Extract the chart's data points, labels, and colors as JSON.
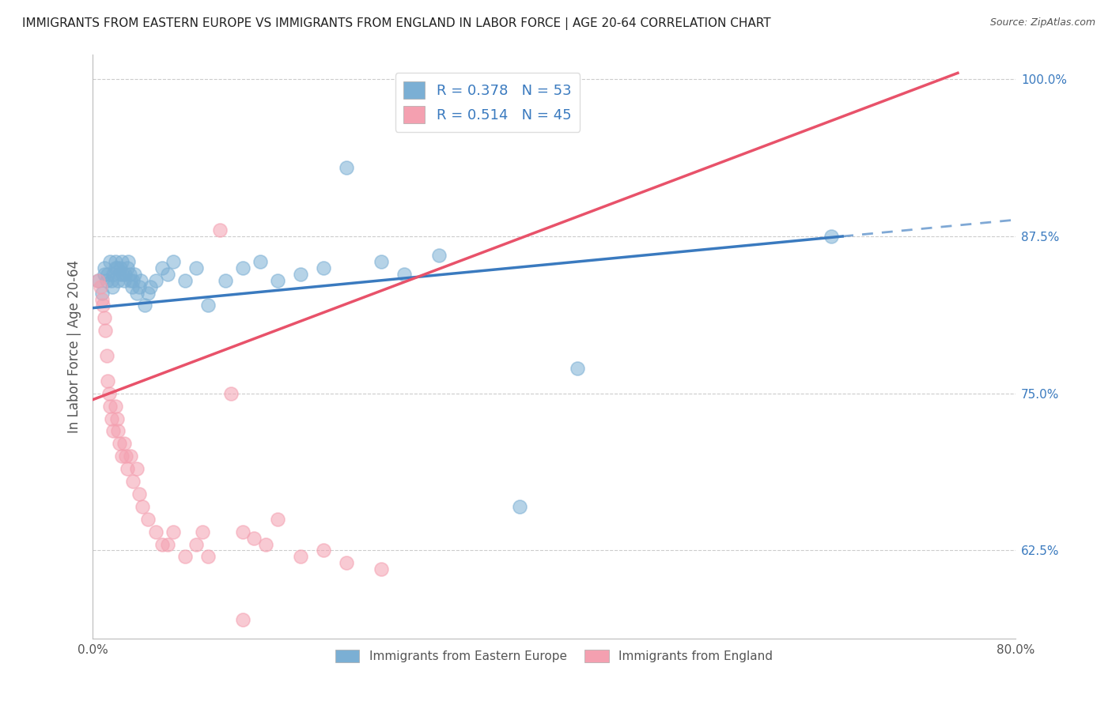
{
  "title": "IMMIGRANTS FROM EASTERN EUROPE VS IMMIGRANTS FROM ENGLAND IN LABOR FORCE | AGE 20-64 CORRELATION CHART",
  "source": "Source: ZipAtlas.com",
  "ylabel": "In Labor Force | Age 20-64",
  "xlim": [
    0.0,
    0.8
  ],
  "ylim": [
    0.555,
    1.02
  ],
  "xticks": [
    0.0,
    0.1,
    0.2,
    0.3,
    0.4,
    0.5,
    0.6,
    0.7,
    0.8
  ],
  "xticklabels": [
    "0.0%",
    "",
    "",
    "",
    "",
    "",
    "",
    "",
    "80.0%"
  ],
  "yticks": [
    0.625,
    0.75,
    0.875,
    1.0
  ],
  "yticklabels": [
    "62.5%",
    "75.0%",
    "87.5%",
    "100.0%"
  ],
  "blue_R": 0.378,
  "blue_N": 53,
  "pink_R": 0.514,
  "pink_N": 45,
  "blue_color": "#7bafd4",
  "pink_color": "#f4a0b0",
  "trend_blue": "#3a7abf",
  "trend_pink": "#e8526a",
  "legend_label_blue": "Immigrants from Eastern Europe",
  "legend_label_pink": "Immigrants from England",
  "blue_x": [
    0.005,
    0.008,
    0.01,
    0.01,
    0.012,
    0.013,
    0.015,
    0.016,
    0.017,
    0.018,
    0.02,
    0.02,
    0.021,
    0.022,
    0.023,
    0.024,
    0.025,
    0.026,
    0.027,
    0.028,
    0.03,
    0.031,
    0.032,
    0.033,
    0.034,
    0.035,
    0.036,
    0.038,
    0.04,
    0.042,
    0.045,
    0.048,
    0.05,
    0.055,
    0.06,
    0.065,
    0.07,
    0.08,
    0.09,
    0.1,
    0.115,
    0.13,
    0.145,
    0.16,
    0.18,
    0.2,
    0.22,
    0.25,
    0.27,
    0.3,
    0.37,
    0.42,
    0.64
  ],
  "blue_y": [
    0.84,
    0.83,
    0.845,
    0.85,
    0.84,
    0.845,
    0.855,
    0.84,
    0.835,
    0.845,
    0.85,
    0.855,
    0.85,
    0.84,
    0.845,
    0.85,
    0.855,
    0.845,
    0.84,
    0.845,
    0.85,
    0.855,
    0.845,
    0.84,
    0.835,
    0.84,
    0.845,
    0.83,
    0.835,
    0.84,
    0.82,
    0.83,
    0.835,
    0.84,
    0.85,
    0.845,
    0.855,
    0.84,
    0.85,
    0.82,
    0.84,
    0.85,
    0.855,
    0.84,
    0.845,
    0.85,
    0.93,
    0.855,
    0.845,
    0.86,
    0.66,
    0.77,
    0.875
  ],
  "pink_x": [
    0.005,
    0.007,
    0.008,
    0.009,
    0.01,
    0.011,
    0.012,
    0.013,
    0.014,
    0.015,
    0.016,
    0.018,
    0.02,
    0.021,
    0.022,
    0.023,
    0.025,
    0.027,
    0.029,
    0.03,
    0.033,
    0.035,
    0.038,
    0.04,
    0.043,
    0.048,
    0.055,
    0.06,
    0.065,
    0.07,
    0.08,
    0.09,
    0.095,
    0.1,
    0.11,
    0.12,
    0.13,
    0.14,
    0.15,
    0.16,
    0.18,
    0.2,
    0.22,
    0.25,
    0.13
  ],
  "pink_y": [
    0.84,
    0.835,
    0.825,
    0.82,
    0.81,
    0.8,
    0.78,
    0.76,
    0.75,
    0.74,
    0.73,
    0.72,
    0.74,
    0.73,
    0.72,
    0.71,
    0.7,
    0.71,
    0.7,
    0.69,
    0.7,
    0.68,
    0.69,
    0.67,
    0.66,
    0.65,
    0.64,
    0.63,
    0.63,
    0.64,
    0.62,
    0.63,
    0.64,
    0.62,
    0.88,
    0.75,
    0.64,
    0.635,
    0.63,
    0.65,
    0.62,
    0.625,
    0.615,
    0.61,
    0.57
  ],
  "blue_trend_x0": 0.0,
  "blue_trend_x1": 0.65,
  "blue_trend_x_dash": 0.8,
  "blue_trend_y0": 0.818,
  "blue_trend_y1": 0.875,
  "pink_trend_x0": 0.0,
  "pink_trend_x1": 0.75,
  "pink_trend_y0": 0.745,
  "pink_trend_y1": 1.005
}
